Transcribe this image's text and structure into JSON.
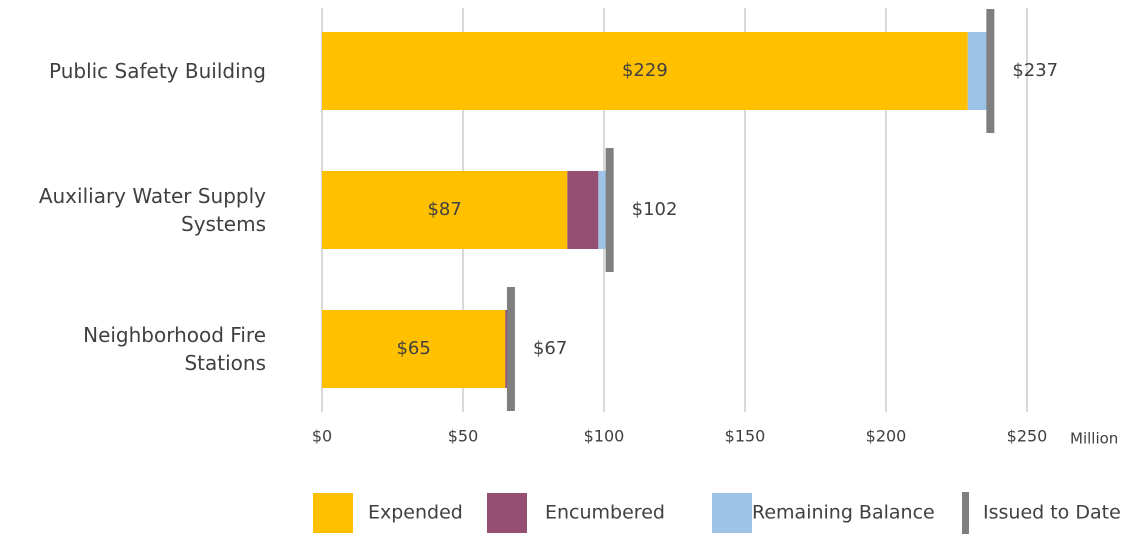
{
  "chart_data": {
    "type": "stacked-bar-horizontal",
    "categories": [
      "Public Safety Building",
      "Auxiliary Water Supply\nSystems",
      "Neighborhood Fire\nStations"
    ],
    "series": [
      {
        "name": "Expended",
        "color": "#FFC000",
        "values": [
          229,
          87,
          65
        ],
        "value_labels": [
          "$229",
          "$87",
          "$65"
        ]
      },
      {
        "name": "Encumbered",
        "color": "#954F72",
        "values": [
          0,
          11,
          1
        ]
      },
      {
        "name": "Remaining Balance",
        "color": "#9DC3E6",
        "values": [
          8,
          4,
          1
        ]
      }
    ],
    "markers": {
      "name": "Issued to Date",
      "color": "#7F7F7F",
      "values": [
        237,
        102,
        67
      ],
      "value_labels": [
        "$237",
        "$102",
        "$67"
      ]
    },
    "xlim": [
      0,
      250
    ],
    "xticks": [
      {
        "value": 0,
        "label": "$0"
      },
      {
        "value": 50,
        "label": "$50"
      },
      {
        "value": 100,
        "label": "$100"
      },
      {
        "value": 150,
        "label": "$150"
      },
      {
        "value": 200,
        "label": "$200"
      },
      {
        "value": 250,
        "label": "$250"
      }
    ],
    "x_unit_label": "Million",
    "grid": true
  }
}
